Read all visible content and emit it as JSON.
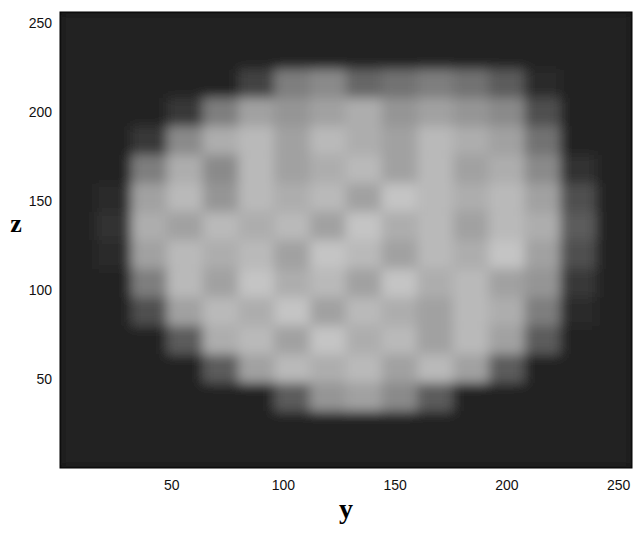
{
  "chart_data": {
    "type": "heatmap",
    "x_label": "y",
    "y_label": "z",
    "color": "#ffffff",
    "xlim": [
      0,
      256
    ],
    "ylim": [
      0,
      256
    ],
    "xticks": [
      50,
      100,
      150,
      200,
      250
    ],
    "yticks": [
      50,
      100,
      150,
      200,
      250
    ],
    "x": [
      8,
      24,
      40,
      56,
      72,
      88,
      104,
      120,
      136,
      152,
      168,
      184,
      200,
      216,
      232,
      248
    ],
    "y": [
      8,
      24,
      40,
      56,
      72,
      88,
      104,
      120,
      136,
      152,
      168,
      184,
      200,
      216,
      232,
      248
    ],
    "cells": [
      [
        0.07,
        0.07,
        0.07,
        0.07,
        0.07,
        0.07,
        0.07,
        0.07,
        0.07,
        0.07,
        0.07,
        0.07,
        0.07,
        0.07,
        0.07,
        0.07
      ],
      [
        0.07,
        0.07,
        0.07,
        0.07,
        0.07,
        0.07,
        0.07,
        0.07,
        0.07,
        0.07,
        0.07,
        0.07,
        0.07,
        0.07,
        0.07,
        0.07
      ],
      [
        0.07,
        0.07,
        0.07,
        0.07,
        0.07,
        0.07,
        0.3,
        0.55,
        0.6,
        0.5,
        0.3,
        0.07,
        0.07,
        0.07,
        0.07,
        0.07
      ],
      [
        0.07,
        0.07,
        0.07,
        0.07,
        0.3,
        0.6,
        0.7,
        0.65,
        0.7,
        0.6,
        0.7,
        0.6,
        0.3,
        0.07,
        0.07,
        0.07
      ],
      [
        0.07,
        0.07,
        0.07,
        0.3,
        0.65,
        0.7,
        0.6,
        0.75,
        0.65,
        0.7,
        0.6,
        0.7,
        0.6,
        0.3,
        0.07,
        0.07
      ],
      [
        0.07,
        0.07,
        0.25,
        0.6,
        0.7,
        0.65,
        0.75,
        0.6,
        0.7,
        0.65,
        0.6,
        0.7,
        0.65,
        0.45,
        0.1,
        0.07
      ],
      [
        0.07,
        0.07,
        0.45,
        0.7,
        0.6,
        0.75,
        0.65,
        0.7,
        0.6,
        0.75,
        0.65,
        0.7,
        0.6,
        0.55,
        0.15,
        0.07
      ],
      [
        0.07,
        0.1,
        0.6,
        0.7,
        0.65,
        0.7,
        0.6,
        0.75,
        0.7,
        0.6,
        0.7,
        0.65,
        0.75,
        0.6,
        0.25,
        0.07
      ],
      [
        0.07,
        0.12,
        0.65,
        0.6,
        0.7,
        0.65,
        0.7,
        0.6,
        0.75,
        0.65,
        0.7,
        0.6,
        0.7,
        0.65,
        0.3,
        0.07
      ],
      [
        0.07,
        0.1,
        0.6,
        0.7,
        0.55,
        0.7,
        0.65,
        0.7,
        0.6,
        0.75,
        0.7,
        0.65,
        0.7,
        0.6,
        0.25,
        0.07
      ],
      [
        0.07,
        0.07,
        0.45,
        0.65,
        0.5,
        0.7,
        0.6,
        0.65,
        0.7,
        0.6,
        0.7,
        0.6,
        0.65,
        0.5,
        0.12,
        0.07
      ],
      [
        0.07,
        0.07,
        0.15,
        0.5,
        0.65,
        0.7,
        0.6,
        0.7,
        0.65,
        0.6,
        0.7,
        0.65,
        0.6,
        0.4,
        0.07,
        0.07
      ],
      [
        0.07,
        0.07,
        0.07,
        0.15,
        0.45,
        0.6,
        0.55,
        0.6,
        0.65,
        0.55,
        0.6,
        0.55,
        0.5,
        0.25,
        0.07,
        0.07
      ],
      [
        0.07,
        0.07,
        0.07,
        0.07,
        0.07,
        0.2,
        0.45,
        0.5,
        0.35,
        0.4,
        0.45,
        0.4,
        0.3,
        0.1,
        0.07,
        0.07
      ],
      [
        0.07,
        0.07,
        0.07,
        0.07,
        0.07,
        0.07,
        0.07,
        0.07,
        0.07,
        0.07,
        0.07,
        0.07,
        0.07,
        0.07,
        0.07,
        0.07
      ],
      [
        0.07,
        0.07,
        0.07,
        0.07,
        0.07,
        0.07,
        0.07,
        0.07,
        0.07,
        0.07,
        0.07,
        0.07,
        0.07,
        0.07,
        0.07,
        0.07
      ]
    ]
  }
}
